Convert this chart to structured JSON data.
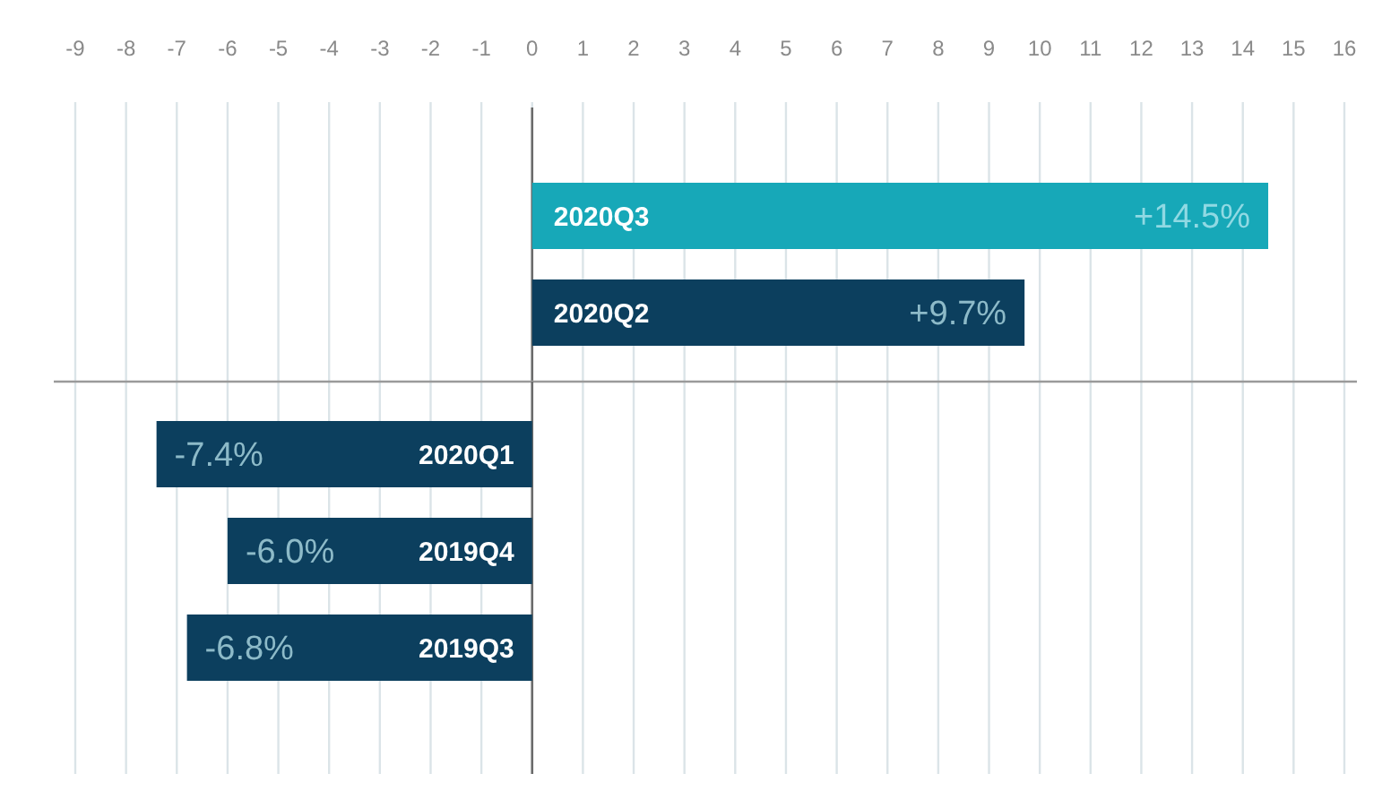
{
  "chart_data": [
    {
      "type": "bar",
      "orientation": "horizontal",
      "categories": [
        "2020Q3",
        "2020Q2"
      ],
      "values": [
        14.5,
        9.7
      ],
      "colors": [
        "#17a8b8",
        "#0c3f5e"
      ],
      "value_labels": [
        "+14.5%",
        "+9.7%"
      ],
      "xlim": [
        -9,
        16
      ],
      "xticks": [
        -9,
        -8,
        -7,
        -6,
        -5,
        -4,
        -3,
        -2,
        -1,
        0,
        1,
        2,
        3,
        4,
        5,
        6,
        7,
        8,
        9,
        10,
        11,
        12,
        13,
        14,
        15,
        16
      ],
      "grid": "x"
    },
    {
      "type": "bar",
      "orientation": "horizontal",
      "categories": [
        "2020Q1",
        "2019Q4",
        "2019Q3"
      ],
      "values": [
        -7.4,
        -6.0,
        -6.8
      ],
      "color": "#0c3f5e",
      "value_labels": [
        "-7.4%",
        "-6.0%",
        "-6.8%"
      ],
      "xlim": [
        -9,
        16
      ],
      "xticks": [
        -9,
        -8,
        -7,
        -6,
        -5,
        -4,
        -3,
        -2,
        -1,
        0,
        1,
        2,
        3,
        4,
        5,
        6,
        7,
        8,
        9,
        10,
        11,
        12,
        13,
        14,
        15,
        16
      ],
      "grid": "x",
      "tick_labels": "y"
    }
  ]
}
